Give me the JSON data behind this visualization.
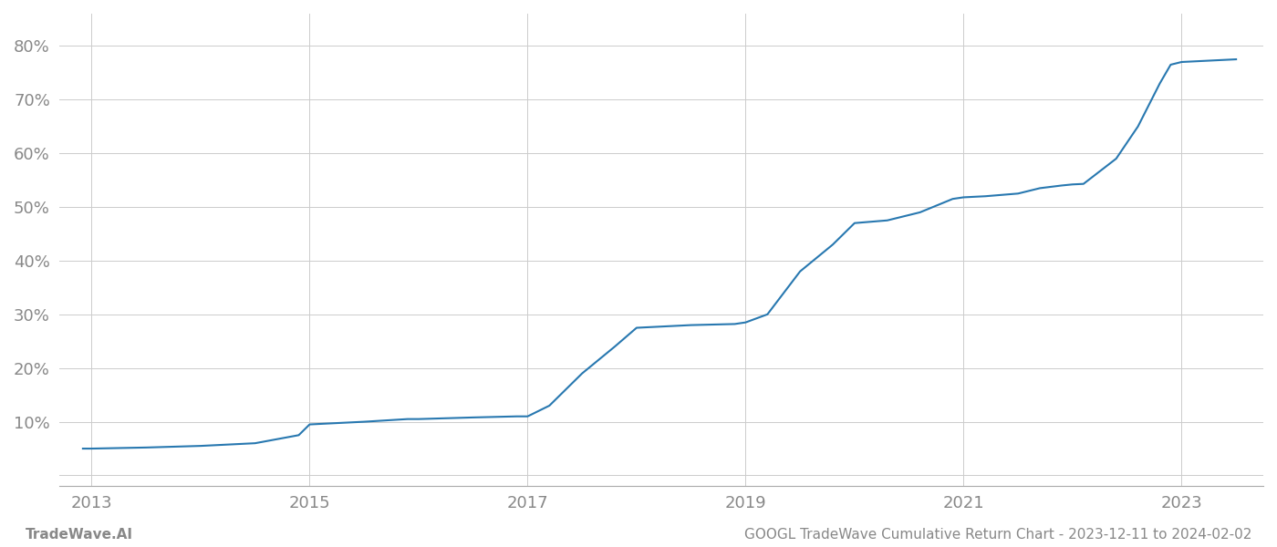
{
  "x_years": [
    2012.92,
    2013.0,
    2013.5,
    2014.0,
    2014.5,
    2014.9,
    2015.0,
    2015.5,
    2015.9,
    2016.0,
    2016.5,
    2016.9,
    2017.0,
    2017.2,
    2017.5,
    2017.8,
    2018.0,
    2018.3,
    2018.5,
    2018.9,
    2019.0,
    2019.2,
    2019.5,
    2019.8,
    2020.0,
    2020.3,
    2020.6,
    2020.9,
    2021.0,
    2021.2,
    2021.5,
    2021.7,
    2021.9,
    2022.0,
    2022.1,
    2022.4,
    2022.6,
    2022.8,
    2022.9,
    2023.0,
    2023.3,
    2023.5
  ],
  "y_values": [
    5.0,
    5.0,
    5.2,
    5.5,
    6.0,
    7.5,
    9.5,
    10.0,
    10.5,
    10.5,
    10.8,
    11.0,
    11.0,
    13.0,
    19.0,
    24.0,
    27.5,
    27.8,
    28.0,
    28.2,
    28.5,
    30.0,
    38.0,
    43.0,
    47.0,
    47.5,
    49.0,
    51.5,
    51.8,
    52.0,
    52.5,
    53.5,
    54.0,
    54.2,
    54.3,
    59.0,
    65.0,
    73.0,
    76.5,
    77.0,
    77.3,
    77.5
  ],
  "line_color": "#2878b0",
  "line_width": 1.5,
  "background_color": "#ffffff",
  "grid_color": "#cccccc",
  "ytick_labels": [
    "",
    "10%",
    "20%",
    "30%",
    "40%",
    "50%",
    "60%",
    "70%",
    "80%"
  ],
  "ytick_values": [
    0,
    10,
    20,
    30,
    40,
    50,
    60,
    70,
    80
  ],
  "xtick_labels": [
    "2013",
    "2015",
    "2017",
    "2019",
    "2021",
    "2023"
  ],
  "xtick_values": [
    2013,
    2015,
    2017,
    2019,
    2021,
    2023
  ],
  "xlim": [
    2012.7,
    2023.75
  ],
  "ylim": [
    -2,
    86
  ],
  "footer_left": "TradeWave.AI",
  "footer_right": "GOOGL TradeWave Cumulative Return Chart - 2023-12-11 to 2024-02-02",
  "footer_color": "#888888",
  "footer_fontsize": 11,
  "tick_label_color": "#888888",
  "tick_fontsize": 13
}
